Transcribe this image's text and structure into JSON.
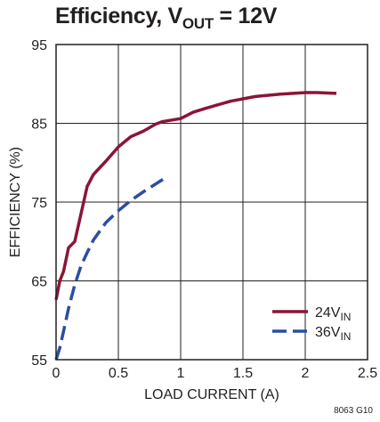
{
  "title": {
    "main": "Efficiency, V",
    "sub": "OUT",
    "rest": " = 12V"
  },
  "figure_id": "8063 G10",
  "chart_data": {
    "type": "line",
    "xlabel": "LOAD CURRENT (A)",
    "ylabel": "EFFICIENCY (%)",
    "xlim": [
      0,
      2.5
    ],
    "ylim": [
      55,
      95
    ],
    "xticks": [
      0,
      0.5,
      1,
      1.5,
      2,
      2.5
    ],
    "xtick_labels": [
      "0",
      "0.5",
      "1",
      "1.5",
      "2",
      "2.5"
    ],
    "yticks": [
      55,
      65,
      75,
      85,
      95
    ],
    "ytick_labels": [
      "55",
      "65",
      "75",
      "85",
      "95"
    ],
    "grid": true,
    "legend_position": "bottom-right",
    "series": [
      {
        "name": "24V",
        "name_sub": "IN",
        "color": "#8b1538",
        "dash": "solid",
        "x": [
          0.0,
          0.03,
          0.06,
          0.1,
          0.15,
          0.2,
          0.25,
          0.3,
          0.4,
          0.5,
          0.6,
          0.7,
          0.8,
          0.85,
          1.0,
          1.1,
          1.2,
          1.4,
          1.6,
          1.8,
          2.0,
          2.1,
          2.25
        ],
        "y": [
          62.6,
          65.0,
          66.2,
          69.2,
          70.0,
          73.5,
          77.0,
          78.5,
          80.2,
          82.0,
          83.3,
          84.0,
          84.9,
          85.2,
          85.6,
          86.4,
          86.9,
          87.8,
          88.4,
          88.7,
          88.9,
          88.9,
          88.8
        ]
      },
      {
        "name": "36V",
        "name_sub": "IN",
        "color": "#2b4ea2",
        "dash": "dashed",
        "x": [
          0.0,
          0.03,
          0.06,
          0.1,
          0.15,
          0.2,
          0.25,
          0.3,
          0.4,
          0.5,
          0.6,
          0.7,
          0.8,
          0.9
        ],
        "y": [
          55.0,
          56.5,
          58.6,
          61.5,
          64.5,
          66.9,
          68.6,
          70.2,
          72.4,
          73.9,
          75.2,
          76.3,
          77.3,
          78.3
        ]
      }
    ]
  }
}
